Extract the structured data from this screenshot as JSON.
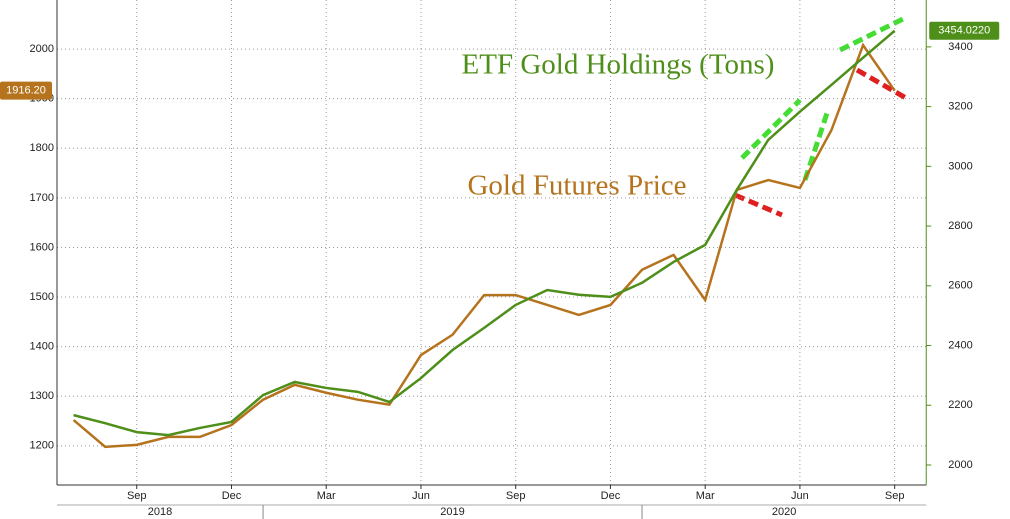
{
  "chart_data": {
    "type": "line",
    "x": [
      "2018-07",
      "2018-08",
      "2018-09",
      "2018-10",
      "2018-11",
      "2018-12",
      "2019-01",
      "2019-02",
      "2019-03",
      "2019-04",
      "2019-05",
      "2019-06",
      "2019-07",
      "2019-08",
      "2019-09",
      "2019-10",
      "2019-11",
      "2019-12",
      "2020-01",
      "2020-02",
      "2020-03",
      "2020-04",
      "2020-05",
      "2020-06",
      "2020-07",
      "2020-08",
      "2020-09"
    ],
    "xlim": [
      "2018-06",
      "2020-10"
    ],
    "xticks": [
      {
        "value": "2018-09",
        "label": "Sep"
      },
      {
        "value": "2018-12",
        "label": "Dec"
      },
      {
        "value": "2019-03",
        "label": "Mar"
      },
      {
        "value": "2019-06",
        "label": "Jun"
      },
      {
        "value": "2019-09",
        "label": "Sep"
      },
      {
        "value": "2019-12",
        "label": "Dec"
      },
      {
        "value": "2020-03",
        "label": "Mar"
      },
      {
        "value": "2020-06",
        "label": "Jun"
      },
      {
        "value": "2020-09",
        "label": "Sep"
      }
    ],
    "x_groups": [
      "2018",
      "2019",
      "2020"
    ],
    "ylim": [
      1121,
      2099
    ],
    "yticks": [
      1200,
      1300,
      1400,
      1500,
      1600,
      1700,
      1800,
      1900,
      2000
    ],
    "y2lim": [
      1933,
      3557
    ],
    "y2ticks": [
      2000,
      2200,
      2400,
      2600,
      2800,
      3000,
      3200,
      3400
    ],
    "grid": true,
    "series": [
      {
        "name": "Gold Futures Price",
        "color": "#b5731e",
        "values": [
          1252,
          1198,
          1202,
          1218,
          1218,
          1242,
          1293,
          1323,
          1307,
          1293,
          1283,
          1383,
          1424,
          1504,
          1504,
          1484,
          1464,
          1484,
          1555,
          1585,
          1494,
          1716,
          1736,
          1720,
          1837,
          2008,
          1916.2
        ],
        "value_labels": [
          null,
          null,
          null,
          null,
          null,
          null,
          null,
          null,
          null,
          null,
          null,
          null,
          null,
          null,
          null,
          null,
          null,
          null,
          null,
          null,
          null,
          null,
          null,
          null,
          null,
          null,
          "1916.20"
        ]
      },
      {
        "name": "ETF Gold Holdings (Tons)",
        "color": "#4e8f1a",
        "axis": "y2",
        "values": [
          2167,
          2140,
          2110,
          2100,
          2124,
          2144,
          2234,
          2278,
          2258,
          2245,
          2211,
          2291,
          2385,
          2459,
          2536,
          2586,
          2570,
          2563,
          2610,
          2680,
          2737,
          2921,
          3089,
          3183,
          3273,
          3364,
          3454.022
        ],
        "value_labels": [
          null,
          null,
          null,
          null,
          null,
          null,
          null,
          null,
          null,
          null,
          null,
          null,
          null,
          null,
          null,
          null,
          null,
          null,
          null,
          null,
          null,
          null,
          null,
          null,
          null,
          null,
          "3454.0220"
        ]
      }
    ]
  }
}
